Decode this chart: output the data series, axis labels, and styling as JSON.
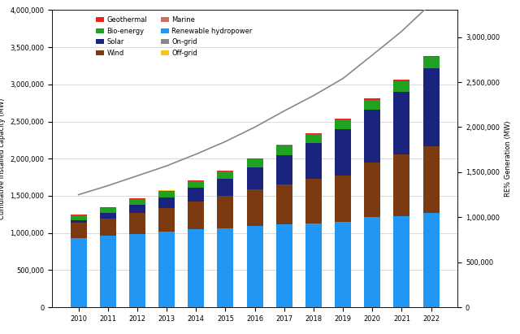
{
  "years": [
    2010,
    2011,
    2012,
    2013,
    2014,
    2015,
    2016,
    2017,
    2018,
    2019,
    2020,
    2021,
    2022
  ],
  "geothermal": [
    10700,
    11000,
    11500,
    11800,
    12800,
    13200,
    13500,
    13800,
    14000,
    14300,
    15900,
    15600,
    15100
  ],
  "bio_energy": [
    62000,
    70000,
    76000,
    82000,
    89000,
    100000,
    109000,
    115000,
    121000,
    127000,
    133000,
    140000,
    147000
  ],
  "solar": [
    40000,
    71000,
    102000,
    140000,
    181000,
    229000,
    295000,
    398000,
    486000,
    627000,
    714000,
    849000,
    1053000
  ],
  "wind": [
    198000,
    238000,
    283000,
    318000,
    370000,
    433000,
    487000,
    539000,
    591000,
    623000,
    733000,
    825000,
    899000
  ],
  "marine": [
    500,
    500,
    500,
    500,
    500,
    500,
    500,
    500,
    500,
    500,
    500,
    500,
    500
  ],
  "renewable_hydro": [
    936000,
    960000,
    990000,
    1018000,
    1055000,
    1064000,
    1096000,
    1114000,
    1133000,
    1150000,
    1211000,
    1230000,
    1265000
  ],
  "on_grid": [
    0,
    0,
    0,
    0,
    0,
    0,
    0,
    3000,
    200,
    500,
    200,
    2400,
    700
  ],
  "off_grid": [
    700,
    700,
    700,
    700,
    700,
    700,
    700,
    700,
    700,
    700,
    700,
    700,
    700
  ],
  "cumulative_line": [
    1250000,
    1350000,
    1460000,
    1570000,
    1700000,
    1840000,
    2000000,
    2180000,
    2350000,
    2540000,
    2800000,
    3064000,
    3372000
  ],
  "colors": {
    "geothermal": "#e82020",
    "bio_energy": "#21a121",
    "solar": "#1a237e",
    "wind": "#7b3a10",
    "marine": "#c97060",
    "renewable_hydro": "#2196f3",
    "on_grid": "#888888",
    "off_grid": "#f5c518"
  },
  "legend_labels": {
    "geothermal": "Geothermal",
    "bio_energy": "Bio-energy",
    "solar": "Solar",
    "wind": "Wind",
    "marine": "Marine",
    "renewable_hydro": "Renewable hydropower",
    "on_grid": "On-grid",
    "off_grid": "Off-grid"
  },
  "ylabel_left": "Cumulative installed capacity (MW)",
  "ylabel_right": "RE% Generation (MW)",
  "ylim_left": [
    0,
    4000000
  ],
  "ylim_right": [
    0,
    3300000
  ],
  "yticks_left": [
    0,
    500000,
    1000000,
    1500000,
    2000000,
    2500000,
    3000000,
    3500000,
    4000000
  ],
  "ytick_labels_left": [
    "0",
    "500,000",
    "1,000,000",
    "1,500,000",
    "2,000,000",
    "2,500,000",
    "3,000,000",
    "3,500,000",
    "4,000,000"
  ],
  "yticks_right": [
    0,
    500000,
    1000000,
    1500000,
    2000000,
    2500000,
    3000000
  ],
  "ytick_labels_right": [
    "0",
    "500,000",
    "1,000,000",
    "1,500,000",
    "2,000,000",
    "2,500,000",
    "3,000,000"
  ],
  "background_color": "#ffffff",
  "line_color": "#888888",
  "line_width": 1.2,
  "bar_width": 0.55,
  "tick_fontsize": 6,
  "label_fontsize": 6,
  "legend_fontsize": 6
}
